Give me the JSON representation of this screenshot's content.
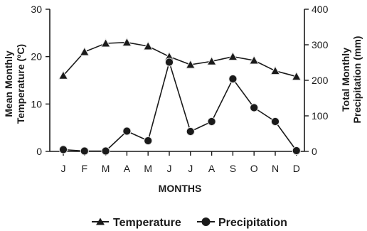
{
  "chart_data": {
    "type": "line",
    "categories": [
      "J",
      "F",
      "M",
      "A",
      "M",
      "J",
      "J",
      "A",
      "S",
      "O",
      "N",
      "D"
    ],
    "xlabel": "MONTHS",
    "ylabel_left": [
      "Mean Monthly",
      "Temperature  (ºC)"
    ],
    "ylabel_right": [
      "Total Monthly",
      "Precipitation  (mm)"
    ],
    "ylim_left": [
      0,
      30
    ],
    "yticks_left": [
      0,
      10,
      20,
      30
    ],
    "ylim_right": [
      0,
      400
    ],
    "yticks_right": [
      0,
      100,
      200,
      300,
      400
    ],
    "grid": false,
    "legend_position": "bottom-center",
    "series": [
      {
        "name": "Temperature",
        "axis": "left",
        "marker": "triangle",
        "values": [
          16.0,
          21.0,
          22.8,
          23.0,
          22.2,
          20.0,
          18.3,
          19.0,
          20.0,
          19.2,
          17.0,
          15.8
        ]
      },
      {
        "name": "Precipitation",
        "axis": "right",
        "marker": "circle",
        "values": [
          5,
          1,
          1,
          57,
          30,
          251,
          56,
          84,
          204,
          123,
          84,
          2
        ]
      }
    ],
    "colors": {
      "line": "#1a1a1a",
      "marker_fill": "#1a1a1a",
      "marker_stroke": "#e6e6e6",
      "background": "#ffffff"
    }
  }
}
